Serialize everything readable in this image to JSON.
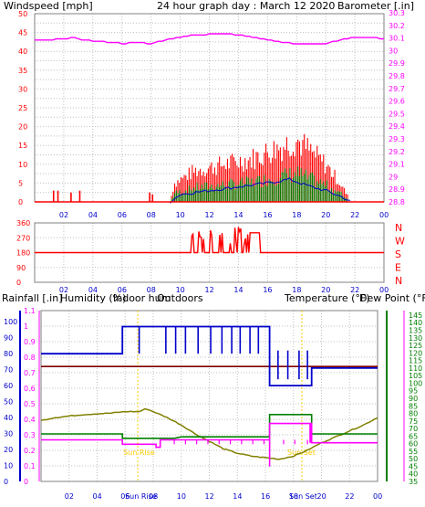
{
  "header": {
    "left": "Windspeed [mph]",
    "center": "24 hour graph day : March 12 2020",
    "right": "Barometer [.in]"
  },
  "colors": {
    "wind": "#ff0000",
    "gust": "#ff0000",
    "avg_wind": "#0000cc",
    "wind_low": "#008000",
    "barometer": "#ff00ff",
    "direction": "#ff0000",
    "rain": "#ff00ff",
    "humidity": "#0000cc",
    "indoor_hum": "#800000",
    "outdoor_temp": "#808000",
    "temperature": "#008000",
    "dewpoint": "#ff00ff",
    "grid": "#c0c0c0",
    "sun": "#ffcc00"
  },
  "x_ticks": [
    "02",
    "04",
    "06",
    "08",
    "10",
    "12",
    "14",
    "16",
    "18",
    "20",
    "22",
    "00"
  ],
  "wind_panel": {
    "left_ticks": [
      "0",
      "5",
      "10",
      "15",
      "20",
      "25",
      "30",
      "35",
      "40",
      "45",
      "50"
    ],
    "right_ticks": [
      "28.8",
      "28.9",
      "29",
      "29.1",
      "29.2",
      "29.3",
      "29.4",
      "29.5",
      "29.6",
      "29.7",
      "29.8",
      "29.9",
      "30",
      "30.1",
      "30.2",
      "30.3"
    ]
  },
  "dir_panel": {
    "left_ticks": [
      "0",
      "90",
      "180",
      "270",
      "360"
    ],
    "compass": [
      "N",
      "W",
      "S",
      "E",
      "N"
    ]
  },
  "bottom_panel": {
    "labels": {
      "rain": "Rainfall [.in]",
      "humidity": "Humidity (%)",
      "indoor": "Indoor hum",
      "outdoors": "Outdoors",
      "temperature": "Temperature (°F)",
      "dewpoint": "Dew Point (°F)"
    },
    "left_rain_ticks": [
      "0",
      "0.1",
      "0.2",
      "0.3",
      "0.4",
      "0.5",
      "0.6",
      "0.7",
      "0.8",
      "0.9",
      "1",
      "1.1"
    ],
    "left_hum_ticks": [
      "0",
      "10",
      "20",
      "30",
      "40",
      "50",
      "60",
      "70",
      "80",
      "90",
      "100"
    ],
    "right_temp_ticks": [
      "35",
      "40",
      "45",
      "50",
      "55",
      "60",
      "65",
      "70",
      "75",
      "80",
      "85",
      "90",
      "95",
      "100",
      "105",
      "110",
      "115",
      "120",
      "125",
      "130",
      "135",
      "140",
      "145"
    ],
    "sun_labels": [
      "Sun Rise",
      "Sun Set",
      "Sun Rise",
      "Sun Set"
    ],
    "x_ticks_extra": [
      "Sun Rise",
      "Sun Set"
    ]
  },
  "chart_data": [
    {
      "type": "line",
      "title": "24 hour graph day : March 12 2020",
      "ylabel": "Windspeed [mph]",
      "y2label": "Barometer [.in]",
      "ylim": [
        0,
        50
      ],
      "y2lim": [
        28.8,
        30.3
      ],
      "x": [
        "00",
        "02",
        "04",
        "06",
        "08",
        "10",
        "12",
        "14",
        "16",
        "18",
        "20",
        "22",
        "00"
      ],
      "series": [
        {
          "name": "Barometer [.in]",
          "values": [
            30.1,
            30.09,
            30.07,
            30.05,
            30.06,
            30.08,
            30.12,
            30.13,
            30.1,
            30.05,
            30.05,
            30.06,
            30.1
          ]
        },
        {
          "name": "Windspeed [mph]",
          "values": [
            0,
            2,
            1,
            0,
            1,
            4,
            6,
            7,
            8,
            9,
            6,
            1,
            0
          ]
        }
      ]
    },
    {
      "type": "line",
      "ylabel": "Direction",
      "ylim": [
        0,
        360
      ],
      "x": [
        "00",
        "02",
        "04",
        "06",
        "08",
        "10",
        "12",
        "14",
        "16",
        "18",
        "20",
        "22",
        "00"
      ],
      "values": [
        180,
        180,
        180,
        180,
        180,
        180,
        180,
        270,
        300,
        180,
        180,
        180,
        180
      ]
    },
    {
      "type": "line",
      "ylabel": "Temperature (°F)",
      "ylim": [
        30,
        145
      ],
      "x": [
        "00",
        "02",
        "04",
        "06",
        "08",
        "10",
        "12",
        "14",
        "16",
        "18",
        "20",
        "22",
        "00"
      ],
      "series": [
        {
          "name": "Outdoors",
          "values": [
            71,
            72,
            73,
            74,
            75,
            76,
            65,
            52,
            46,
            46,
            53,
            66,
            72
          ]
        },
        {
          "name": "Humidity (%)",
          "values": [
            80,
            80,
            80,
            80,
            97,
            97,
            97,
            97,
            97,
            70,
            70,
            72,
            75
          ]
        },
        {
          "name": "Indoor hum",
          "values": [
            71,
            71,
            71,
            71,
            71,
            71,
            71,
            71,
            71,
            71,
            71,
            71,
            71
          ]
        },
        {
          "name": "Temperature (°F)",
          "values": [
            62,
            62,
            62,
            62,
            58,
            59,
            60,
            61,
            62,
            75,
            75,
            66,
            66
          ]
        },
        {
          "name": "Dew Point (°F)",
          "values": [
            57,
            57,
            57,
            57,
            54,
            56,
            56,
            56,
            57,
            60,
            60,
            58,
            58
          ]
        }
      ]
    }
  ]
}
